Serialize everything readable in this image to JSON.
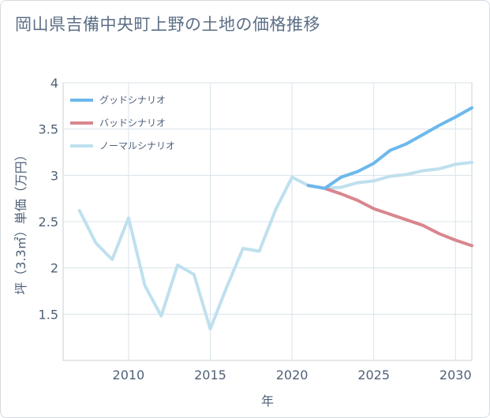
{
  "title": "岡山県吉備中央町上野の土地の価格推移",
  "chart_data": {
    "type": "line",
    "title": "岡山県吉備中央町上野の土地の価格推移",
    "xlabel": "年",
    "ylabel": "坪（3.3㎡）単価（万円）",
    "xlim": [
      2006,
      2031
    ],
    "ylim": [
      1.0,
      4.0
    ],
    "xticks": [
      2010,
      2015,
      2020,
      2025,
      2030
    ],
    "yticks": [
      1.5,
      2,
      2.5,
      3,
      3.5,
      4
    ],
    "xtick_labels": [
      "2010",
      "2015",
      "2020",
      "2025",
      "2030"
    ],
    "ytick_labels": [
      "1.5",
      "2",
      "2.5",
      "3",
      "3.5",
      "4"
    ],
    "grid": true,
    "legend_position": "top-left",
    "series": [
      {
        "name": "グッドシナリオ",
        "color": "#6cb8ec",
        "x": [
          2021,
          2022,
          2023,
          2024,
          2025,
          2026,
          2027,
          2028,
          2029,
          2030,
          2031
        ],
        "y": [
          2.89,
          2.86,
          2.98,
          3.04,
          3.13,
          3.27,
          3.34,
          3.44,
          3.54,
          3.63,
          3.73
        ]
      },
      {
        "name": "バッドシナリオ",
        "color": "#d9868d",
        "x": [
          2021,
          2022,
          2023,
          2024,
          2025,
          2026,
          2027,
          2028,
          2029,
          2030,
          2031
        ],
        "y": [
          2.89,
          2.86,
          2.8,
          2.73,
          2.64,
          2.58,
          2.52,
          2.46,
          2.37,
          2.3,
          2.24
        ]
      },
      {
        "name": "ノーマルシナリオ",
        "color": "#bfe0ee",
        "x": [
          2007,
          2008,
          2009,
          2010,
          2011,
          2012,
          2013,
          2014,
          2015,
          2016,
          2017,
          2018,
          2019,
          2020,
          2021,
          2022,
          2023,
          2024,
          2025,
          2026,
          2027,
          2028,
          2029,
          2030,
          2031
        ],
        "y": [
          2.62,
          2.27,
          2.09,
          2.54,
          1.81,
          1.48,
          2.03,
          1.93,
          1.34,
          1.79,
          2.21,
          2.18,
          2.63,
          2.98,
          2.89,
          2.86,
          2.87,
          2.92,
          2.94,
          2.99,
          3.01,
          3.05,
          3.07,
          3.12,
          3.14
        ]
      }
    ]
  }
}
